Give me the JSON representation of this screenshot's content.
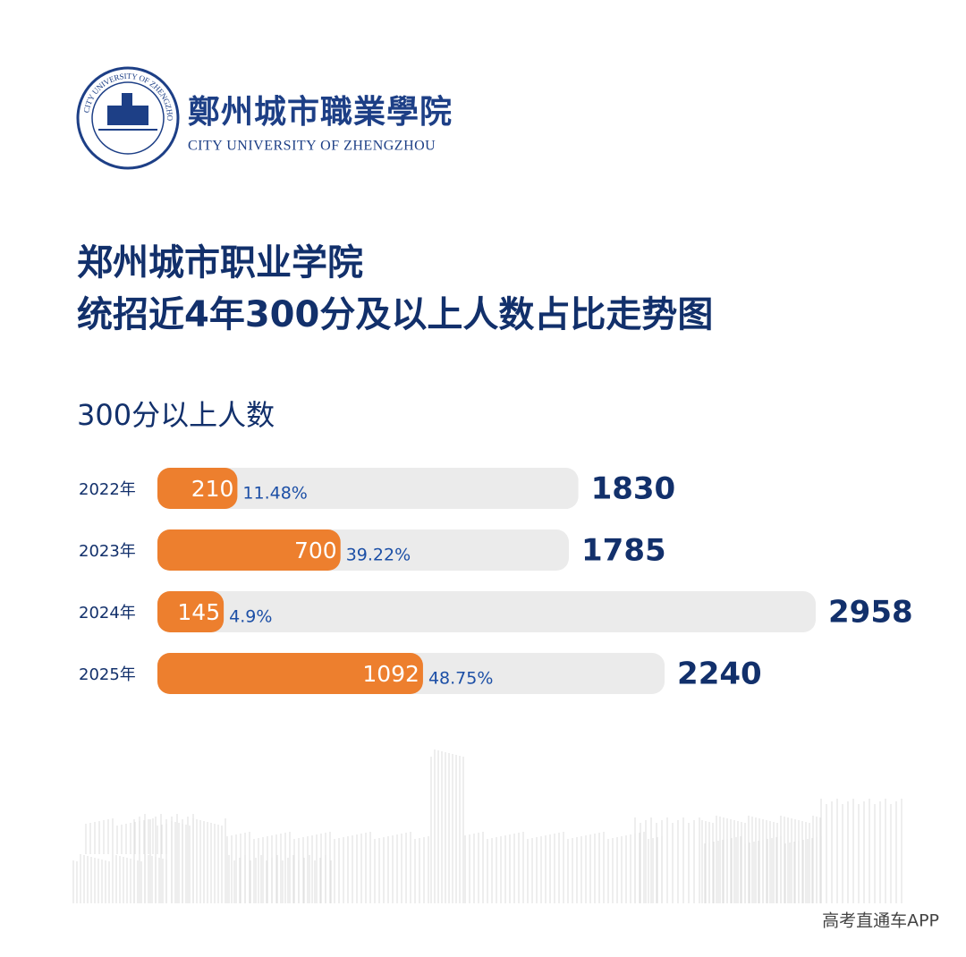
{
  "logo": {
    "name_cn": "鄭州城市職業學院",
    "name_en": "CITY UNIVERSITY OF ZHENGZHOU"
  },
  "chart_data": {
    "type": "bar",
    "title": [
      "郑州城市职业学院",
      "统招近4年300分及以上人数占比走势图"
    ],
    "subtitle": "300分以上人数",
    "categories": [
      "2022年",
      "2023年",
      "2024年",
      "2025年"
    ],
    "series": [
      {
        "color": "#ebebeb",
        "values": [
          1830,
          1785,
          2958,
          2240
        ]
      },
      {
        "color": "#ed7f2e",
        "values": [
          210,
          700,
          145,
          1092
        ]
      }
    ],
    "share": {
      "values": [
        11.48,
        39.22,
        4.9,
        48.75
      ],
      "value_labels": [
        "11.48%",
        "39.22%",
        "4.9%",
        "48.75%"
      ]
    }
  },
  "watermark": "高考直通车APP"
}
